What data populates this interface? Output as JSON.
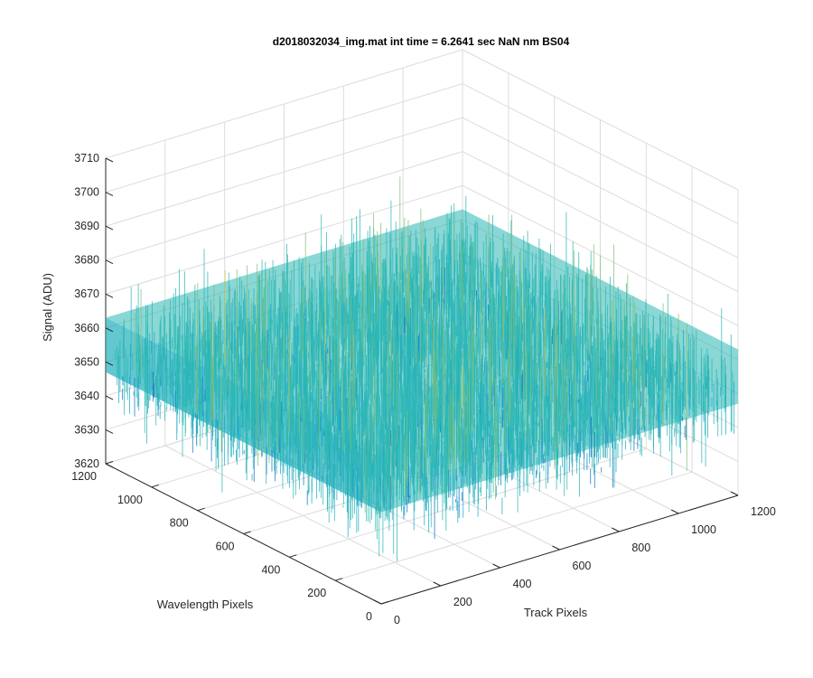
{
  "chart_data": {
    "type": "surface",
    "title": "d2018032034_img.mat int time = 6.2641 sec  NaN nm BS04",
    "xlabel": "Track Pixels",
    "ylabel": "Wavelength Pixels",
    "zlabel": "Signal (ADU)",
    "xlim": [
      0,
      1200
    ],
    "ylim": [
      0,
      1200
    ],
    "zlim": [
      3620,
      3710
    ],
    "x_ticks": [
      "0",
      "200",
      "400",
      "600",
      "800",
      "1000",
      "1200"
    ],
    "y_ticks": [
      "0",
      "200",
      "400",
      "600",
      "800",
      "1000",
      "1200"
    ],
    "z_ticks": [
      "3620",
      "3630",
      "3640",
      "3650",
      "3660",
      "3670",
      "3680",
      "3690",
      "3700",
      "3710"
    ],
    "x_range": [
      0,
      1200
    ],
    "y_range": [
      0,
      1200
    ],
    "signal_mean": 3655,
    "signal_noise_range": [
      3625,
      3700
    ],
    "grid": true,
    "colormap": "parula",
    "colors": {
      "low": "#0d6fc4",
      "mid_low": "#1aa8c9",
      "mid": "#2ab7b3",
      "mid_high": "#7fbf7b",
      "high": "#d7c450",
      "grid": "#dcdcdc",
      "axis": "#262626"
    }
  }
}
